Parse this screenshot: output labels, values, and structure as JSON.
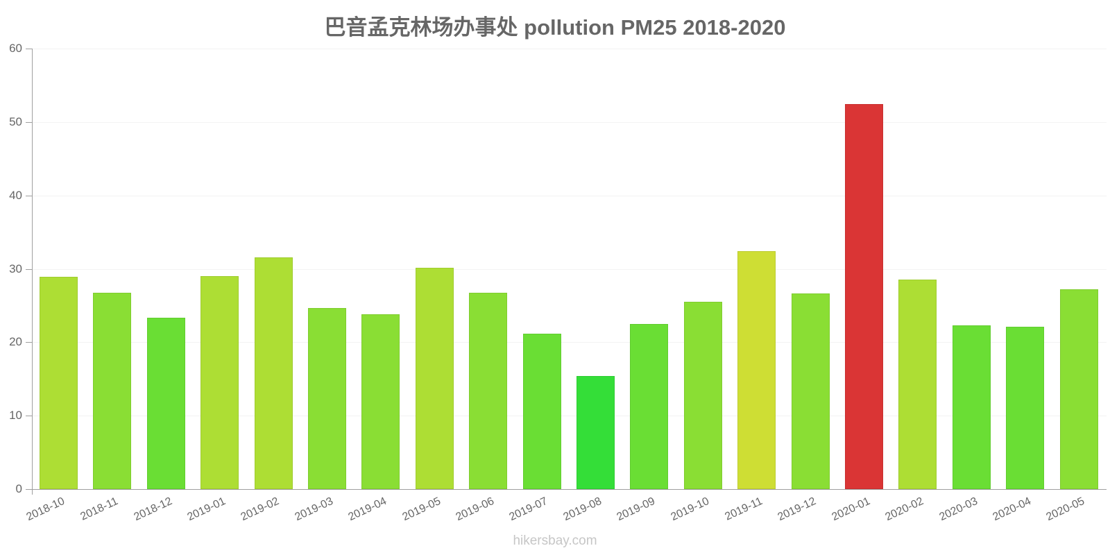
{
  "title": "巴音孟克林场办事处 pollution PM25 2018-2020",
  "footer": "hikersbay.com",
  "colors": {
    "red": "#DA3535",
    "yellow_green": "#CEDE34",
    "lime": "#ADDE34",
    "light_green": "#8ADE34",
    "green": "#6ADE34",
    "bright_green": "#34DE38",
    "axis": "#9e9e9e",
    "grid": "#f3f3f3",
    "text": "#666666"
  },
  "chart_data": {
    "type": "bar",
    "title": "巴音孟克林场办事处 pollution PM25 2018-2020",
    "xlabel": "",
    "ylabel": "",
    "ylim": [
      0,
      60
    ],
    "yticks": [
      0,
      10,
      20,
      30,
      40,
      50,
      60
    ],
    "grid": true,
    "legend": null,
    "categories": [
      "2018-10",
      "2018-11",
      "2018-12",
      "2019-01",
      "2019-02",
      "2019-03",
      "2019-04",
      "2019-05",
      "2019-06",
      "2019-07",
      "2019-08",
      "2019-09",
      "2019-10",
      "2019-11",
      "2019-12",
      "2020-01",
      "2020-02",
      "2020-03",
      "2020-04",
      "2020-05"
    ],
    "values": [
      28.9,
      26.7,
      23.3,
      29.0,
      31.6,
      24.7,
      23.8,
      30.1,
      26.7,
      21.2,
      15.4,
      22.5,
      25.5,
      32.4,
      26.6,
      52.4,
      28.5,
      22.3,
      22.1,
      27.2
    ],
    "bar_colors": [
      "#ADDE34",
      "#8ADE34",
      "#6ADE34",
      "#ADDE34",
      "#ADDE34",
      "#8ADE34",
      "#8ADE34",
      "#ADDE34",
      "#8ADE34",
      "#6ADE34",
      "#34DE38",
      "#6ADE34",
      "#8ADE34",
      "#CEDE34",
      "#8ADE34",
      "#DA3535",
      "#ADDE34",
      "#6ADE34",
      "#6ADE34",
      "#8ADE34"
    ]
  }
}
